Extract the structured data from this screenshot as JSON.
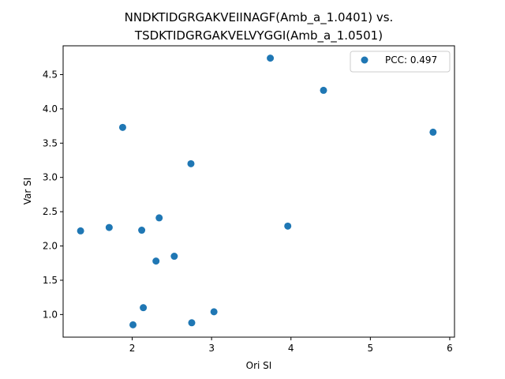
{
  "chart_data": {
    "type": "scatter",
    "title_lines": [
      "NNDKTIDGRGAKVEIINAGF(Amb_a_1.0401) vs.",
      "TSDKTIDGRGAKVELVYGGI(Amb_a_1.0501)"
    ],
    "xlabel": "Ori SI",
    "ylabel": "Var SI",
    "xlim": [
      1.13,
      6.06
    ],
    "ylim": [
      0.67,
      4.92
    ],
    "xticks": [
      2,
      3,
      4,
      5,
      6
    ],
    "yticks": [
      1.0,
      1.5,
      2.0,
      2.5,
      3.0,
      3.5,
      4.0,
      4.5
    ],
    "grid": false,
    "legend_position": "top-right",
    "series": [
      {
        "name": "PCC: 0.497",
        "color": "#1f77b4",
        "points": [
          {
            "x": 1.35,
            "y": 2.22
          },
          {
            "x": 1.71,
            "y": 2.27
          },
          {
            "x": 1.88,
            "y": 3.73
          },
          {
            "x": 2.01,
            "y": 0.85
          },
          {
            "x": 2.12,
            "y": 2.23
          },
          {
            "x": 2.14,
            "y": 1.1
          },
          {
            "x": 2.3,
            "y": 1.78
          },
          {
            "x": 2.34,
            "y": 2.41
          },
          {
            "x": 2.53,
            "y": 1.85
          },
          {
            "x": 2.74,
            "y": 3.2
          },
          {
            "x": 2.75,
            "y": 0.88
          },
          {
            "x": 3.03,
            "y": 1.04
          },
          {
            "x": 3.74,
            "y": 4.74
          },
          {
            "x": 3.96,
            "y": 2.29
          },
          {
            "x": 4.41,
            "y": 4.27
          },
          {
            "x": 5.79,
            "y": 3.66
          }
        ]
      }
    ]
  }
}
